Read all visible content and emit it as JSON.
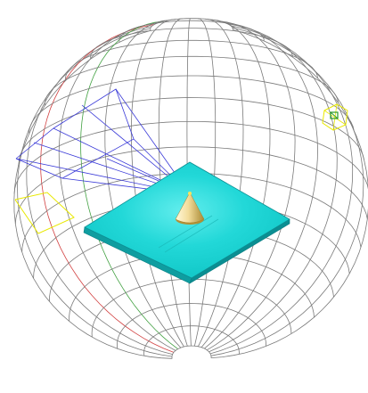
{
  "viewport": {
    "background": "#ffffff",
    "label": ""
  },
  "colors": {
    "grid": "#7a7a7a",
    "grid_red": "#d24040",
    "grid_green": "#40a040",
    "grid_blue": "#3a3ad8",
    "selection_yellow": "#e8e800",
    "light_marker_green": "#2a9a2a",
    "plane_cyan": "#19d2d2",
    "plane_edge": "#0c8f93",
    "cone_light": "#fbf3c6",
    "cone_mid": "#e8c676",
    "cone_dark": "#9a7d2a"
  },
  "icons": {
    "light": "point-light-icon"
  }
}
